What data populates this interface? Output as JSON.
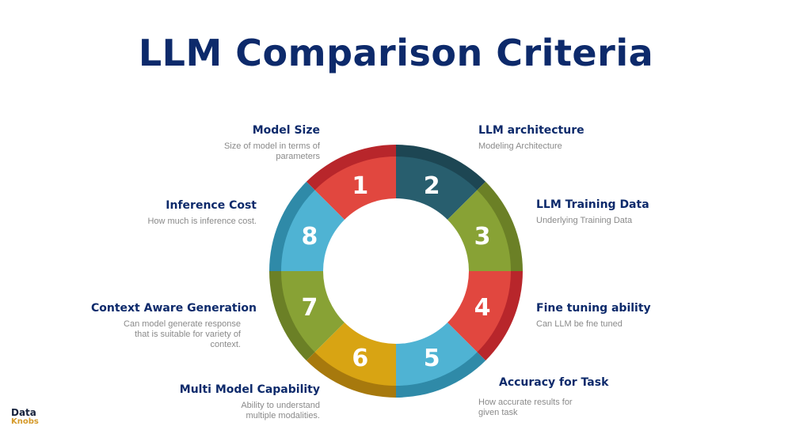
{
  "title": "LLM Comparison Criteria",
  "segments": [
    {
      "number": "1",
      "label": "Model Size",
      "description": "Size of model in terms of parameters",
      "color": "#e1473f",
      "rim": "#b8262b"
    },
    {
      "number": "2",
      "label": "LLM architecture",
      "description": "Modeling Architecture",
      "color": "#285e6e",
      "rim": "#1d4653"
    },
    {
      "number": "3",
      "label": "LLM Training Data",
      "description": "Underlying Training Data",
      "color": "#88a235",
      "rim": "#6b8026"
    },
    {
      "number": "4",
      "label": "Fine tuning ability",
      "description": "Can LLM be fne tuned",
      "color": "#e1473f",
      "rim": "#b8262b"
    },
    {
      "number": "5",
      "label": "Accuracy for Task",
      "description": "How accurate results for given task",
      "color": "#4fb3d3",
      "rim": "#2f8aa8"
    },
    {
      "number": "6",
      "label": "Multi Model Capability",
      "description": "Ability to understand multiple modalities.",
      "color": "#d8a413",
      "rim": "#a7790d"
    },
    {
      "number": "7",
      "label": "Context Aware Generation",
      "description": "Can model generate response that is suitable for variety of context.",
      "color": "#88a235",
      "rim": "#6b8026"
    },
    {
      "number": "8",
      "label": "Inference Cost",
      "description": "How much is inference cost.",
      "color": "#4fb3d3",
      "rim": "#2f8aa8"
    }
  ],
  "logo": {
    "line1": "Data",
    "line2": "Knobs"
  }
}
